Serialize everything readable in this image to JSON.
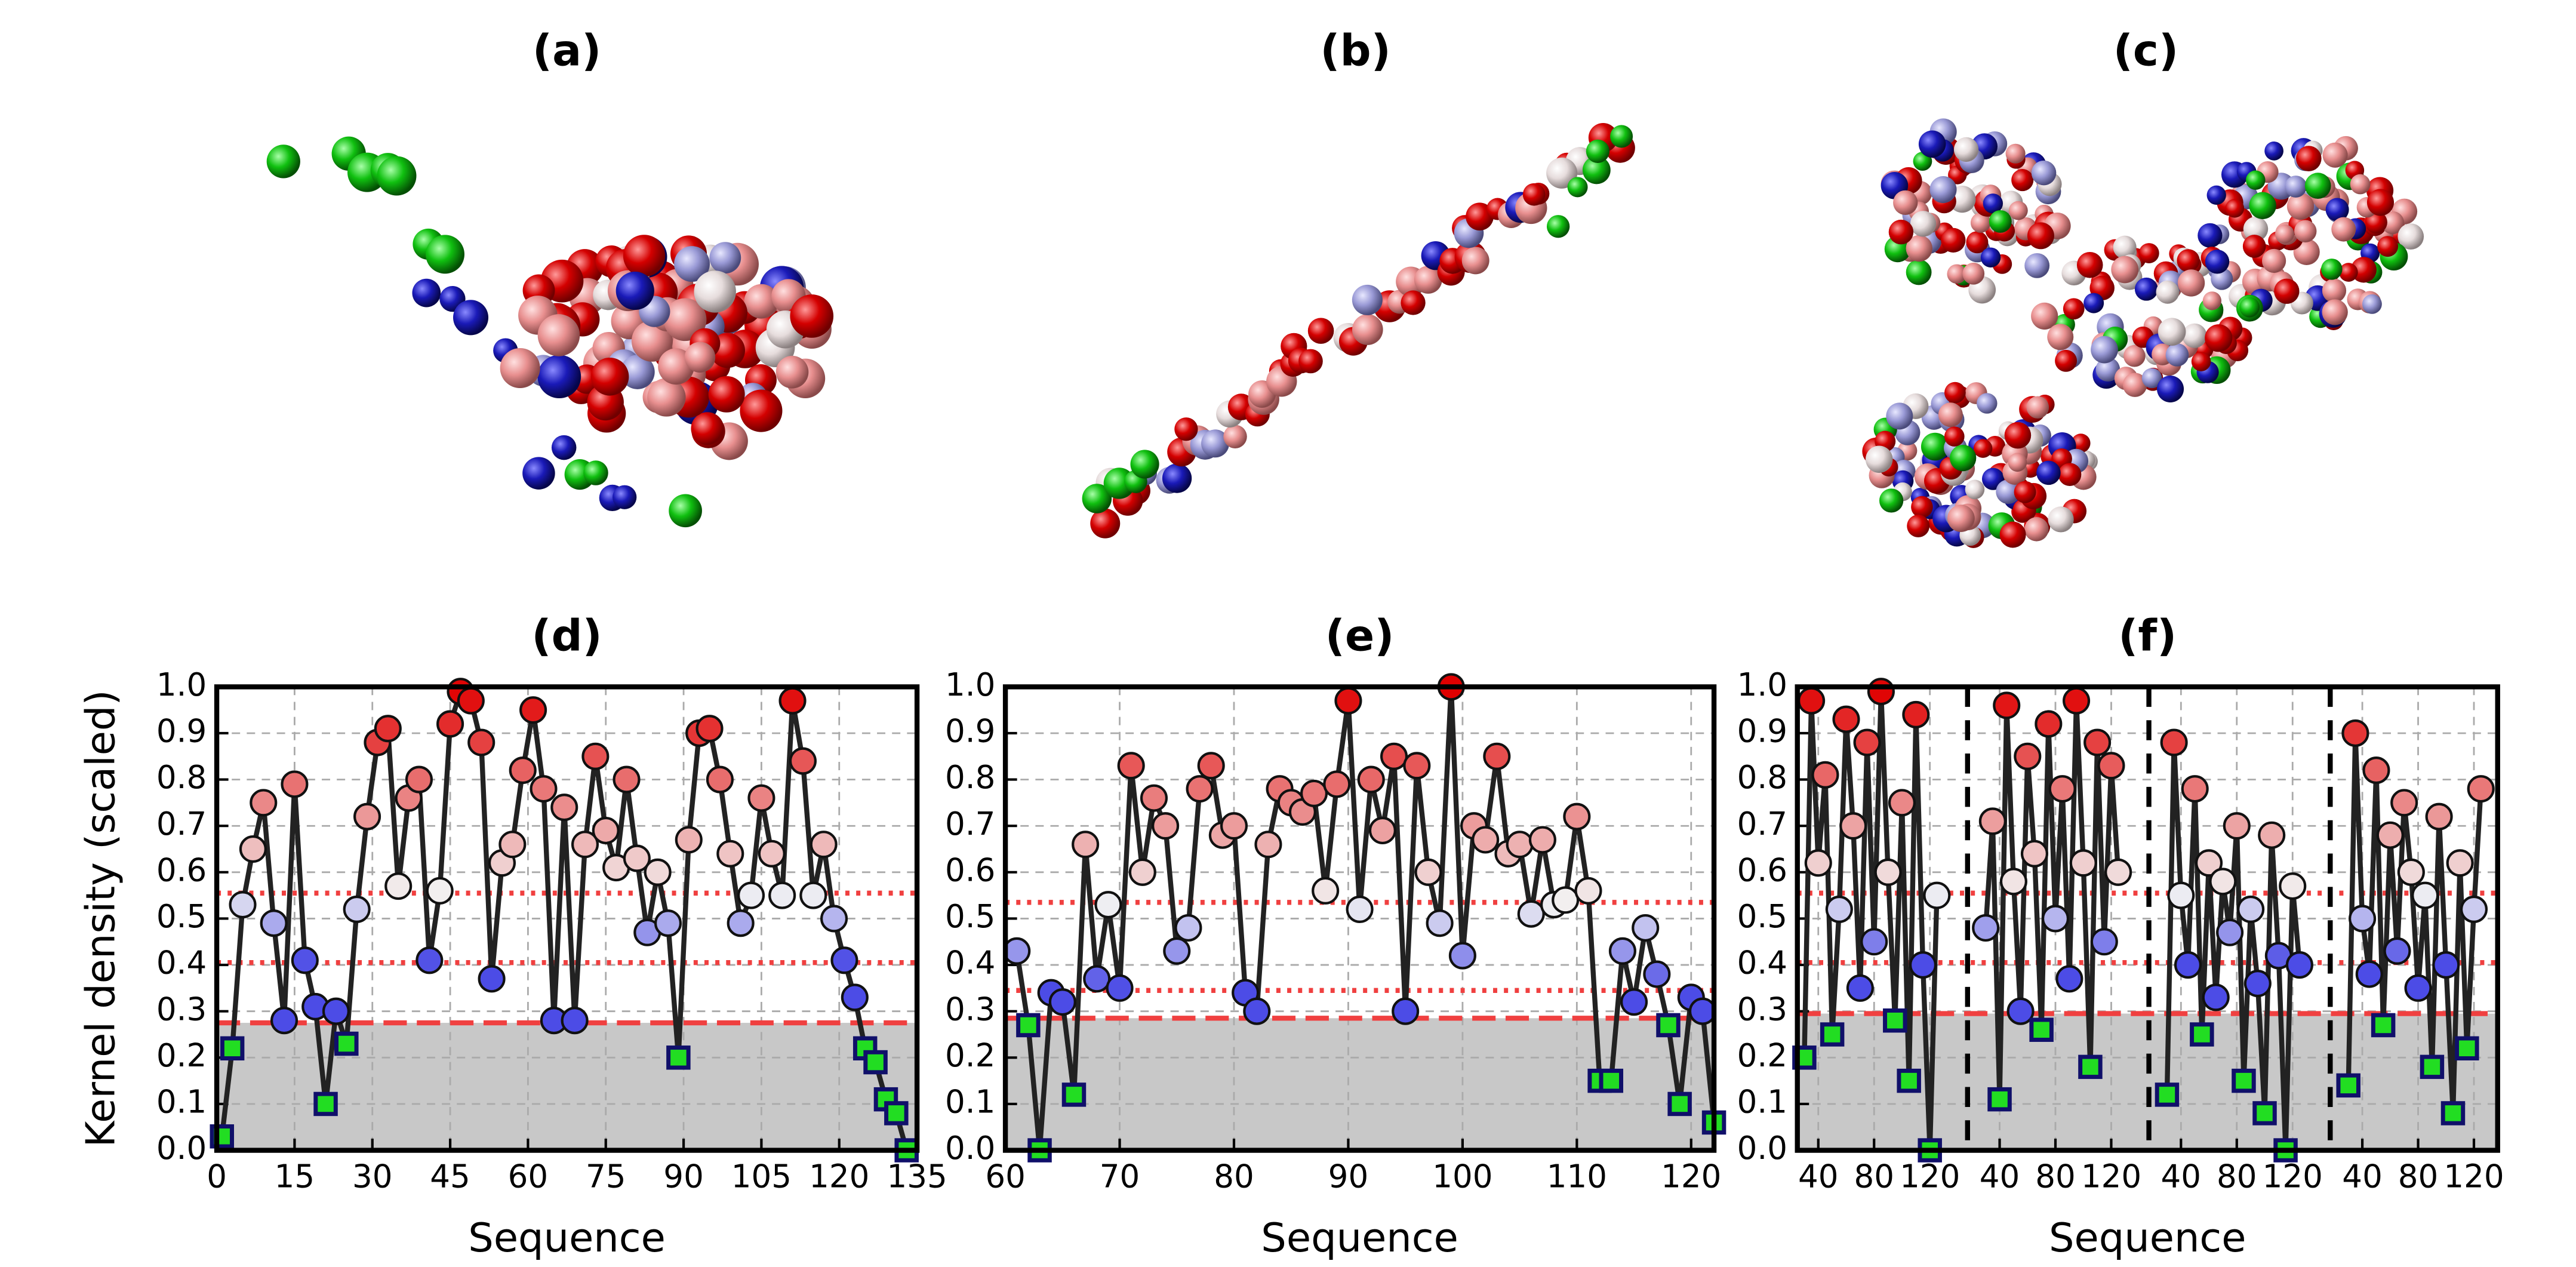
{
  "panels": [
    {
      "title": "(a)"
    },
    {
      "title": "(b)"
    },
    {
      "title": "(c)"
    }
  ],
  "chart_data": [
    {
      "type": "line",
      "title": "(d)",
      "ylabel": "Kernel density (scaled)",
      "xlabel": "Sequence",
      "x": [
        1,
        3,
        5,
        7,
        9,
        11,
        13,
        15,
        17,
        19,
        21,
        23,
        25,
        27,
        29,
        31,
        33,
        35,
        37,
        39,
        41,
        43,
        45,
        47,
        49,
        51,
        53,
        55,
        57,
        59,
        61,
        63,
        65,
        67,
        69,
        71,
        73,
        75,
        77,
        79,
        81,
        83,
        85,
        87,
        89,
        91,
        93,
        95,
        97,
        99,
        101,
        103,
        105,
        107,
        109,
        111,
        113,
        115,
        117,
        119,
        121,
        123,
        125,
        127,
        129,
        131,
        133
      ],
      "values": [
        0.03,
        0.22,
        0.53,
        0.65,
        0.75,
        0.49,
        0.28,
        0.79,
        0.41,
        0.31,
        0.1,
        0.3,
        0.23,
        0.52,
        0.72,
        0.88,
        0.91,
        0.57,
        0.76,
        0.8,
        0.41,
        0.56,
        0.92,
        0.99,
        0.97,
        0.88,
        0.37,
        0.62,
        0.66,
        0.82,
        0.95,
        0.78,
        0.28,
        0.74,
        0.28,
        0.66,
        0.85,
        0.69,
        0.61,
        0.8,
        0.63,
        0.47,
        0.6,
        0.49,
        0.2,
        0.67,
        0.9,
        0.91,
        0.8,
        0.64,
        0.49,
        0.55,
        0.76,
        0.64,
        0.55,
        0.97,
        0.84,
        0.55,
        0.66,
        0.5,
        0.41,
        0.33,
        0.22,
        0.19,
        0.11,
        0.08,
        0.0
      ],
      "xlim": [
        0,
        135
      ],
      "ylim": [
        0,
        1
      ],
      "xticks": [
        0,
        15,
        30,
        45,
        60,
        75,
        90,
        105,
        120,
        135
      ],
      "yticks": [
        {
          "value": 0,
          "label": "0.0"
        },
        0.1,
        0.2,
        0.3,
        0.4,
        0.5,
        0.6,
        0.7,
        0.8,
        0.9,
        {
          "value": 1,
          "label": "1.0"
        }
      ],
      "grid": true,
      "threshold": 0.275,
      "levels": [
        0.405,
        0.555
      ],
      "line_color": "#222222",
      "shade_color": "#c8c8c8",
      "threshold_color": "#f04040",
      "colormap": [
        "#4c4ce6",
        "#f2f2f2",
        "#e00000"
      ],
      "below_color": "#22dd22",
      "below_edge": "#10106a"
    },
    {
      "type": "line",
      "title": "(e)",
      "xlabel": "Sequence",
      "x": [
        61,
        62,
        63,
        64,
        65,
        66,
        67,
        68,
        69,
        70,
        71,
        72,
        73,
        74,
        75,
        76,
        77,
        78,
        79,
        80,
        81,
        82,
        83,
        84,
        85,
        86,
        87,
        88,
        89,
        90,
        91,
        92,
        93,
        94,
        95,
        96,
        97,
        98,
        99,
        100,
        101,
        102,
        103,
        104,
        105,
        106,
        107,
        108,
        109,
        110,
        111,
        112,
        113,
        114,
        115,
        116,
        117,
        118,
        119,
        120,
        121,
        122
      ],
      "values": [
        0.43,
        0.27,
        0.0,
        0.34,
        0.32,
        0.12,
        0.66,
        0.37,
        0.53,
        0.35,
        0.83,
        0.6,
        0.76,
        0.7,
        0.43,
        0.48,
        0.78,
        0.83,
        0.68,
        0.7,
        0.34,
        0.3,
        0.66,
        0.78,
        0.75,
        0.73,
        0.77,
        0.56,
        0.79,
        0.97,
        0.52,
        0.8,
        0.69,
        0.85,
        0.3,
        0.83,
        0.6,
        0.49,
        1.0,
        0.42,
        0.7,
        0.67,
        0.85,
        0.64,
        0.66,
        0.51,
        0.67,
        0.53,
        0.54,
        0.72,
        0.56,
        0.15,
        0.15,
        0.43,
        0.32,
        0.48,
        0.38,
        0.27,
        0.1,
        0.33,
        0.3,
        0.06
      ],
      "xlim": [
        60,
        122
      ],
      "ylim": [
        0,
        1
      ],
      "xticks": [
        60,
        70,
        80,
        90,
        100,
        110,
        120
      ],
      "yticks": [
        {
          "value": 0,
          "label": "0.0"
        },
        0.1,
        0.2,
        0.3,
        0.4,
        0.5,
        0.6,
        0.7,
        0.8,
        0.9,
        {
          "value": 1,
          "label": "1.0"
        }
      ],
      "grid": true,
      "threshold": 0.285,
      "levels": [
        0.345,
        0.535
      ],
      "line_color": "#222222",
      "shade_color": "#c8c8c8",
      "threshold_color": "#f04040",
      "colormap": [
        "#4c4ce6",
        "#f2f2f2",
        "#e00000"
      ],
      "below_color": "#22dd22",
      "below_edge": "#10106a"
    },
    {
      "type": "line",
      "title": "(f)",
      "xlabel": "Sequence",
      "x": [
        30,
        35,
        40,
        45,
        50,
        55,
        60,
        65,
        70,
        75,
        80,
        85,
        90,
        95,
        100,
        105,
        110,
        115,
        120,
        125,
        160,
        165,
        170,
        175,
        180,
        185,
        190,
        195,
        200,
        205,
        210,
        215,
        220,
        225,
        230,
        235,
        240,
        245,
        250,
        255,
        290,
        295,
        300,
        305,
        310,
        315,
        320,
        325,
        330,
        335,
        340,
        345,
        350,
        355,
        360,
        365,
        370,
        375,
        380,
        385,
        420,
        425,
        430,
        435,
        440,
        445,
        450,
        455,
        460,
        465,
        470,
        475,
        480,
        485,
        490,
        495,
        500,
        505,
        510,
        515
      ],
      "values": [
        0.2,
        0.97,
        0.62,
        0.81,
        0.25,
        0.52,
        0.93,
        0.7,
        0.35,
        0.88,
        0.45,
        0.99,
        0.6,
        0.28,
        0.75,
        0.15,
        0.94,
        0.4,
        0.0,
        0.55,
        0.48,
        0.71,
        0.11,
        0.96,
        0.58,
        0.3,
        0.85,
        0.64,
        0.26,
        0.92,
        0.5,
        0.78,
        0.37,
        0.97,
        0.62,
        0.18,
        0.88,
        0.45,
        0.83,
        0.6,
        0.12,
        0.88,
        0.55,
        0.4,
        0.78,
        0.25,
        0.62,
        0.33,
        0.58,
        0.47,
        0.7,
        0.15,
        0.52,
        0.36,
        0.08,
        0.68,
        0.42,
        0.0,
        0.57,
        0.4,
        0.14,
        0.9,
        0.5,
        0.38,
        0.82,
        0.27,
        0.68,
        0.43,
        0.75,
        0.6,
        0.35,
        0.55,
        0.18,
        0.72,
        0.4,
        0.08,
        0.62,
        0.22,
        0.52,
        0.78
      ],
      "xlim": [
        25,
        527
      ],
      "ylim": [
        0,
        1
      ],
      "xticks": [
        40,
        80,
        120,
        {
          "value": 170,
          "label": "40"
        },
        {
          "value": 210,
          "label": "80"
        },
        {
          "value": 250,
          "label": "120"
        },
        {
          "value": 300,
          "label": "40"
        },
        {
          "value": 340,
          "label": "80"
        },
        {
          "value": 380,
          "label": "120"
        },
        {
          "value": 430,
          "label": "40"
        },
        {
          "value": 470,
          "label": "80"
        },
        {
          "value": 510,
          "label": "120"
        }
      ],
      "yticks": [
        {
          "value": 0,
          "label": "0.0"
        },
        0.1,
        0.2,
        0.3,
        0.4,
        0.5,
        0.6,
        0.7,
        0.8,
        0.9,
        {
          "value": 1,
          "label": "1.0"
        }
      ],
      "vlines": [
        147,
        277,
        407
      ],
      "grid": true,
      "threshold": 0.295,
      "levels": [
        0.405,
        0.555
      ],
      "line_color": "#222222",
      "shade_color": "#c8c8c8",
      "threshold_color": "#f04040",
      "colormap": [
        "#4c4ce6",
        "#f2f2f2",
        "#e00000"
      ],
      "below_color": "#22dd22",
      "below_edge": "#10106a"
    }
  ]
}
